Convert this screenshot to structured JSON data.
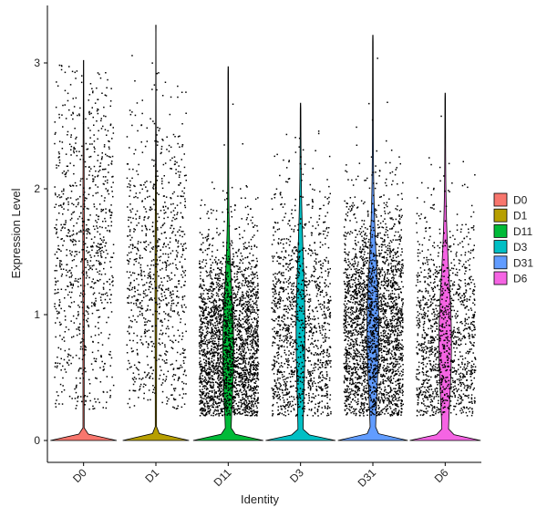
{
  "chart_data": {
    "type": "violin",
    "xlabel": "Identity",
    "ylabel": "Expression Level",
    "ylim": [
      -0.18,
      3.45
    ],
    "yticks": [
      0,
      1,
      2,
      3
    ],
    "grid": false,
    "legend_position": "right",
    "categories": [
      "D0",
      "D1",
      "D11",
      "D3",
      "D31",
      "D6"
    ],
    "series": [
      {
        "name": "D0",
        "color": "#F8766D",
        "max": 3.02,
        "zero_fraction": 0.97,
        "cells": "sparse",
        "points_mean": 1.5,
        "points_spread": 0.75
      },
      {
        "name": "D1",
        "color": "#B79F00",
        "max": 3.3,
        "zero_fraction": 0.97,
        "cells": "sparse",
        "points_mean": 1.3,
        "points_spread": 0.65
      },
      {
        "name": "D11",
        "color": "#00BA38",
        "max": 2.97,
        "zero_fraction": 0.75,
        "cells": "dense",
        "points_mean": 0.75,
        "points_spread": 0.45
      },
      {
        "name": "D3",
        "color": "#00BFC4",
        "max": 2.68,
        "zero_fraction": 0.8,
        "cells": "medium",
        "points_mean": 0.9,
        "points_spread": 0.55
      },
      {
        "name": "D31",
        "color": "#619CFF",
        "max": 3.22,
        "zero_fraction": 0.72,
        "cells": "dense",
        "points_mean": 0.9,
        "points_spread": 0.5
      },
      {
        "name": "D6",
        "color": "#F564E3",
        "max": 2.76,
        "zero_fraction": 0.7,
        "cells": "medium",
        "points_mean": 0.8,
        "points_spread": 0.5
      }
    ]
  }
}
